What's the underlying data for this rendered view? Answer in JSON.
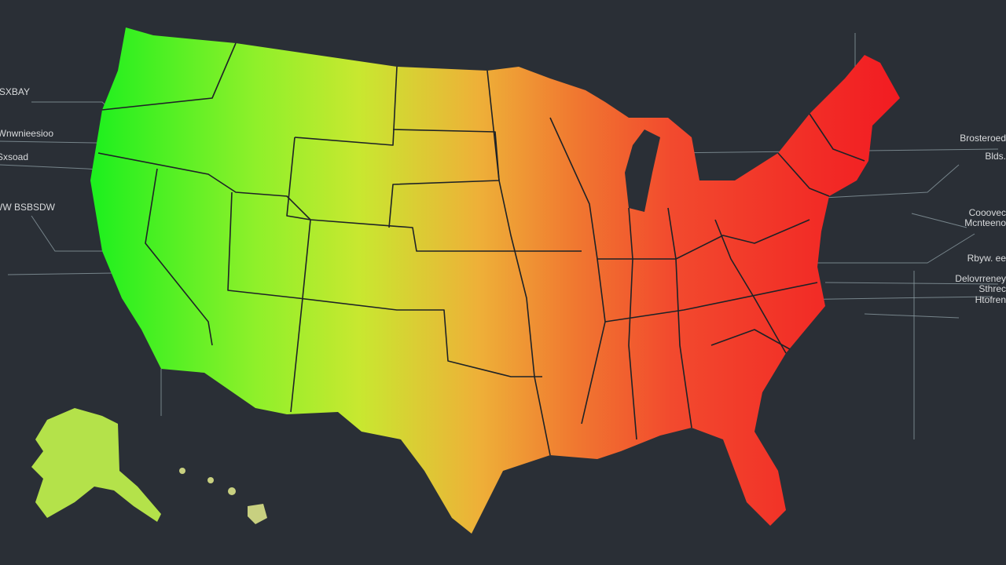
{
  "labels_left": [
    "SXBAY",
    "Wnwnieesioo",
    "Sxsoad",
    "RWW BSBSDW"
  ],
  "labels_right": [
    "Brosteroed",
    "Blds.",
    "Cooovec",
    "Mcnteeno",
    "Rbyw. ee",
    "Delovrreney",
    "Sthrec",
    "Htofren"
  ]
}
